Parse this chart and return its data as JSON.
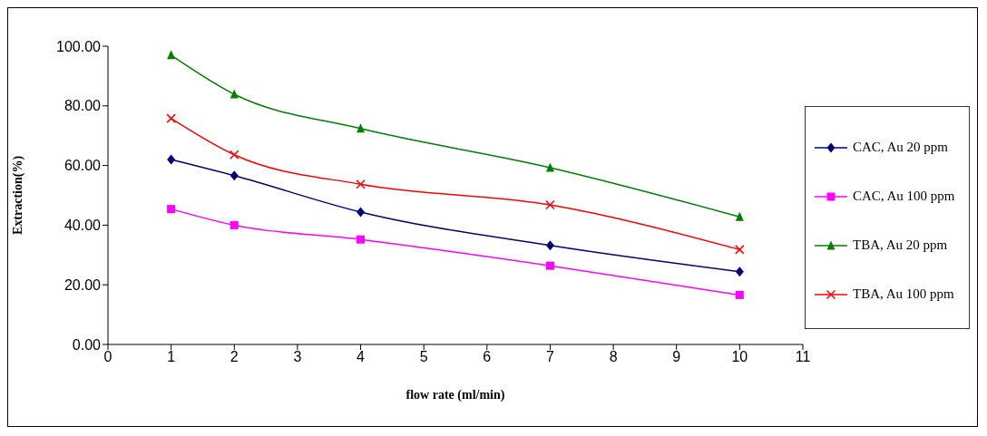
{
  "chart_data": {
    "type": "line",
    "xlabel": "flow rate (ml/min)",
    "ylabel": "Extraction(%)",
    "x": [
      1,
      2,
      4,
      7,
      10
    ],
    "series": [
      {
        "name": "CAC, Au 20 ppm",
        "color": "#000080",
        "marker": "diamond",
        "values": [
          62.0,
          56.6,
          44.4,
          33.2,
          24.4
        ]
      },
      {
        "name": "CAC, Au 100 ppm",
        "color": "#ff00ff",
        "marker": "square",
        "values": [
          45.4,
          40.0,
          35.2,
          26.4,
          16.6
        ]
      },
      {
        "name": "TBA, Au 20 ppm",
        "color": "#008000",
        "marker": "triangle",
        "values": [
          97.0,
          83.9,
          72.4,
          59.3,
          42.8
        ]
      },
      {
        "name": "TBA, Au 100 ppm",
        "color": "#ff0000",
        "marker": "cross",
        "values": [
          75.8,
          63.6,
          53.7,
          46.8,
          31.8
        ]
      }
    ],
    "xlim": [
      0,
      11
    ],
    "xticks": [
      0,
      1,
      2,
      3,
      4,
      5,
      6,
      7,
      8,
      9,
      10,
      11
    ],
    "ylim": [
      0,
      100
    ],
    "yticks": [
      {
        "value": 0,
        "label": "0.00"
      },
      {
        "value": 20,
        "label": "20.00"
      },
      {
        "value": 40,
        "label": "40.00"
      },
      {
        "value": 60,
        "label": "60.00"
      },
      {
        "value": 80,
        "label": "80.00"
      },
      {
        "value": 100,
        "label": "100.00"
      }
    ],
    "grid": false,
    "legend": "right",
    "line_style": "solid"
  }
}
